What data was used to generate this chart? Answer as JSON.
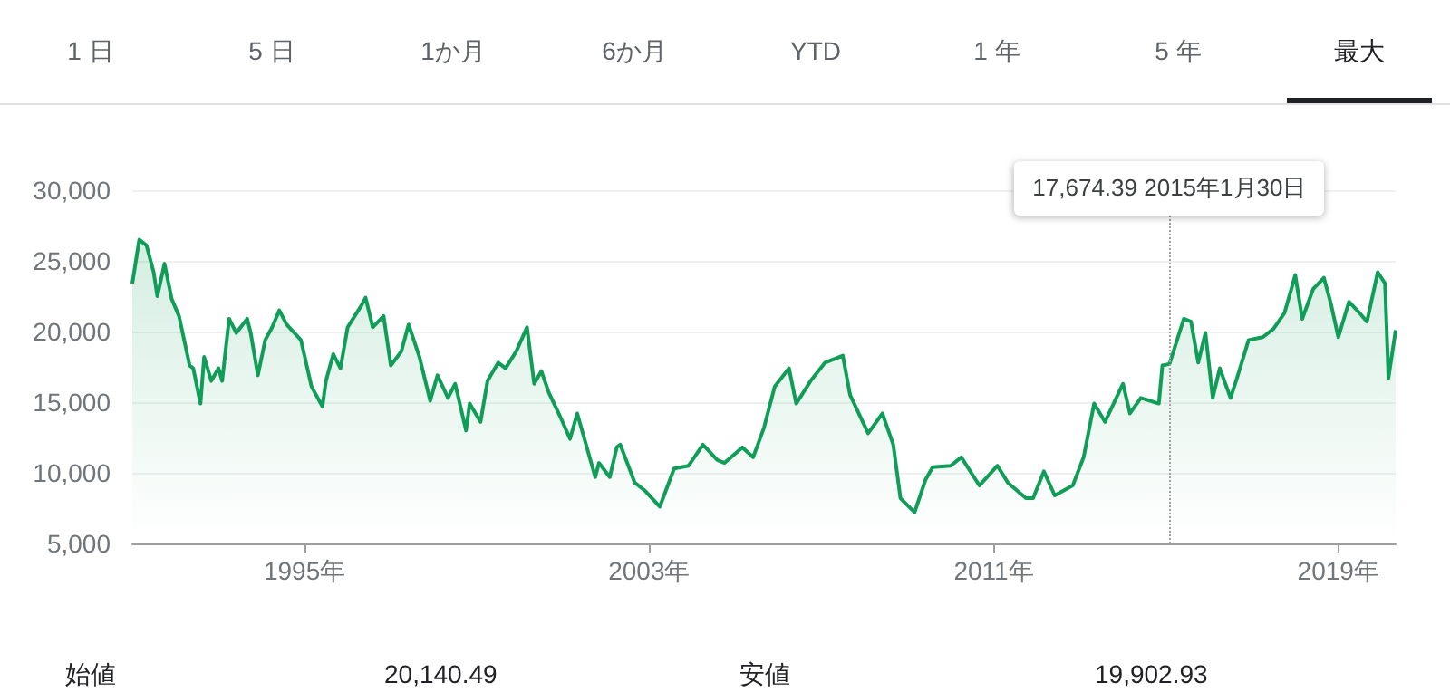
{
  "chart_data": {
    "type": "area",
    "grid": "y",
    "marker": "none",
    "line_style": "solid",
    "annotations": [
      "1 日",
      "5 日",
      "1か月",
      "6か月",
      "YTD",
      "1 年",
      "5 年",
      "最大",
      "始値",
      "20,140.49",
      "安値",
      "19,902.93"
    ],
    "xlim": [
      "1991-01",
      "2020-05"
    ],
    "xticks": [
      {
        "value": "1995",
        "label": "1995年"
      },
      {
        "value": "2003",
        "label": "2003年"
      },
      {
        "value": "2011",
        "label": "2011年"
      },
      {
        "value": "2019",
        "label": "2019年"
      }
    ],
    "ylim": [
      5000,
      30000
    ],
    "yticks": [
      {
        "value": 5000,
        "label": "5,000"
      },
      {
        "value": 10000,
        "label": "10,000"
      },
      {
        "value": 15000,
        "label": "15,000"
      },
      {
        "value": 20000,
        "label": "20,000"
      },
      {
        "value": 25000,
        "label": "25,000"
      },
      {
        "value": 30000,
        "label": "30,000"
      }
    ],
    "ref_lines": [
      {
        "axis": "x",
        "value": "2015-01-30",
        "line_style": "dotted",
        "color": "#9e9e9e",
        "label": "17,674.39  2015年1月30日"
      }
    ],
    "x": [
      "1991-01",
      "1991-03",
      "1991-05",
      "1991-07",
      "1991-08",
      "1991-10",
      "1991-12",
      "1992-02",
      "1992-05",
      "1992-06",
      "1992-08",
      "1992-09",
      "1992-11",
      "1993-01",
      "1993-02",
      "1993-04",
      "1993-06",
      "1993-09",
      "1993-10",
      "1993-12",
      "1994-02",
      "1994-04",
      "1994-06",
      "1994-08",
      "1994-12",
      "1995-03",
      "1995-06",
      "1995-07",
      "1995-09",
      "1995-11",
      "1996-01",
      "1996-05",
      "1996-06",
      "1996-08",
      "1996-11",
      "1997-01",
      "1997-04",
      "1997-06",
      "1997-09",
      "1997-12",
      "1998-02",
      "1998-05",
      "1998-07",
      "1998-10",
      "1998-11",
      "1999-02",
      "1999-04",
      "1999-07",
      "1999-09",
      "1999-12",
      "2000-03",
      "2000-05",
      "2000-07",
      "2000-09",
      "2000-12",
      "2001-03",
      "2001-05",
      "2001-10",
      "2001-11",
      "2002-02",
      "2002-04",
      "2002-05",
      "2002-09",
      "2002-12",
      "2003-04",
      "2003-08",
      "2003-12",
      "2004-04",
      "2004-08",
      "2004-10",
      "2005-03",
      "2005-06",
      "2005-09",
      "2005-12",
      "2006-04",
      "2006-06",
      "2006-10",
      "2007-02",
      "2007-07",
      "2007-09",
      "2008-02",
      "2008-06",
      "2008-09",
      "2008-11",
      "2009-03",
      "2009-06",
      "2009-08",
      "2010-01",
      "2010-04",
      "2010-09",
      "2011-02",
      "2011-05",
      "2011-10",
      "2011-12",
      "2012-03",
      "2012-06",
      "2012-11",
      "2013-02",
      "2013-05",
      "2013-08",
      "2014-01",
      "2014-03",
      "2014-06",
      "2014-11",
      "2014-12",
      "2015-01-30",
      "2015-06",
      "2015-08",
      "2015-10",
      "2015-12",
      "2016-02",
      "2016-04",
      "2016-07",
      "2016-09",
      "2016-12",
      "2017-04",
      "2017-07",
      "2017-10",
      "2018-01",
      "2018-03",
      "2018-06",
      "2018-09",
      "2018-11",
      "2019-01",
      "2019-04",
      "2019-07",
      "2019-09",
      "2019-12",
      "2020-02",
      "2020-03",
      "2020-05"
    ],
    "series": [
      {
        "color": "#0f9d58",
        "values": [
          23400,
          26500,
          26100,
          24200,
          22500,
          24800,
          22300,
          21100,
          17600,
          17400,
          14900,
          18200,
          16500,
          17400,
          16500,
          20900,
          19900,
          20900,
          19900,
          16900,
          19400,
          20300,
          21500,
          20500,
          19400,
          16100,
          14700,
          16500,
          18400,
          17400,
          20300,
          21900,
          22400,
          20300,
          21100,
          17600,
          18600,
          20500,
          18200,
          15100,
          16900,
          15300,
          16300,
          13000,
          14900,
          13600,
          16500,
          17800,
          17400,
          18600,
          20300,
          16300,
          17200,
          15700,
          14100,
          12400,
          14200,
          9700,
          10700,
          9700,
          11800,
          12000,
          9300,
          8700,
          7600,
          10300,
          10500,
          12000,
          10900,
          10700,
          11800,
          11100,
          13200,
          16100,
          17400,
          14900,
          16500,
          17800,
          18300,
          15500,
          12800,
          14200,
          12000,
          8200,
          7200,
          9500,
          10400,
          10500,
          11100,
          9100,
          10500,
          9300,
          8200,
          8200,
          10100,
          8400,
          9100,
          11100,
          14900,
          13600,
          16300,
          14200,
          15300,
          14900,
          17600,
          17700,
          20900,
          20700,
          17800,
          19900,
          15300,
          17400,
          15300,
          16900,
          19400,
          19600,
          20200,
          21300,
          24000,
          20900,
          23000,
          23800,
          21900,
          19600,
          22100,
          21300,
          20700,
          24200,
          23400,
          16700,
          20100
        ]
      }
    ]
  }
}
